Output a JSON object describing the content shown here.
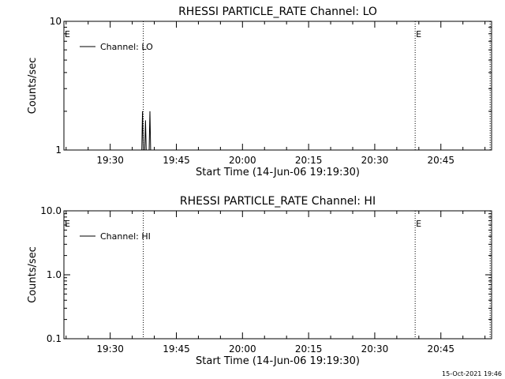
{
  "footer_timestamp": "15-Oct-2021 19:46",
  "chart_data": [
    {
      "type": "line",
      "title": "RHESSI PARTICLE_RATE Channel: LO",
      "xlabel": "Start Time (14-Jun-06 19:19:30)",
      "ylabel": "Counts/sec",
      "y_scale": "log",
      "ylim": [
        1,
        10
      ],
      "y_ticks": [
        {
          "value": 1,
          "label": "1"
        },
        {
          "value": 10,
          "label": "10"
        }
      ],
      "x_time_range": [
        "19:19:30",
        "20:56:30"
      ],
      "x_ticks": [
        "19:30",
        "19:45",
        "20:00",
        "20:15",
        "20:30",
        "20:45"
      ],
      "legend": "top-left",
      "series": [
        {
          "name": "Channel: LO",
          "points": [
            [
              "19:19:30",
              1
            ],
            [
              "19:37:10",
              1
            ],
            [
              "19:37:20",
              2
            ],
            [
              "19:37:30",
              1
            ],
            [
              "19:37:50",
              1
            ],
            [
              "19:38:00",
              1.7
            ],
            [
              "19:38:10",
              1
            ],
            [
              "19:38:50",
              1
            ],
            [
              "19:39:00",
              2
            ],
            [
              "19:39:10",
              1
            ],
            [
              "20:56:30",
              1
            ]
          ]
        }
      ],
      "markers": [
        {
          "time": "19:37:30",
          "label": ""
        },
        {
          "time": "20:39:10",
          "label": "E"
        },
        {
          "time": "20:56:10",
          "label": ""
        }
      ],
      "edge_label": "E"
    },
    {
      "type": "line",
      "title": "RHESSI PARTICLE_RATE Channel: HI",
      "xlabel": "Start Time (14-Jun-06 19:19:30)",
      "ylabel": "Counts/sec",
      "y_scale": "log",
      "ylim": [
        0.1,
        10
      ],
      "y_ticks": [
        {
          "value": 0.1,
          "label": "0.1"
        },
        {
          "value": 1,
          "label": "1.0"
        },
        {
          "value": 10,
          "label": "10.0"
        }
      ],
      "x_time_range": [
        "19:19:30",
        "20:56:30"
      ],
      "x_ticks": [
        "19:30",
        "19:45",
        "20:00",
        "20:15",
        "20:30",
        "20:45"
      ],
      "legend": "top-left",
      "series": [
        {
          "name": "Channel: HI",
          "points": []
        }
      ],
      "markers": [
        {
          "time": "19:37:30",
          "label": ""
        },
        {
          "time": "20:39:10",
          "label": "E"
        },
        {
          "time": "20:56:10",
          "label": ""
        }
      ],
      "edge_label": "E"
    }
  ]
}
